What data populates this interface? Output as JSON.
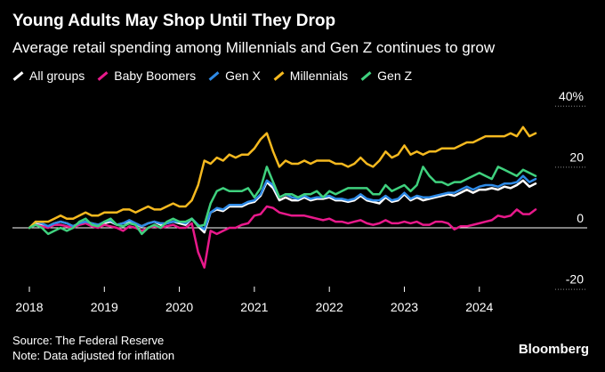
{
  "title": "Young Adults May Shop Until They Drop",
  "subtitle": "Average retail spending among Millennials and Gen Z continues to grow",
  "source": "Source: The Federal Reserve",
  "note": "Note: Data adjusted for inflation",
  "brand": "Bloomberg",
  "chart_data": {
    "type": "line",
    "title": "Young Adults May Shop Until They Drop",
    "subtitle": "Average retail spending among Millennials and Gen Z continues to grow",
    "xlim": [
      2018.0,
      2024.75
    ],
    "ylim": [
      -20,
      42
    ],
    "x_ticks": [
      {
        "value": 2018,
        "label": "2018"
      },
      {
        "value": 2019,
        "label": "2019"
      },
      {
        "value": 2020,
        "label": "2020"
      },
      {
        "value": 2021,
        "label": "2021"
      },
      {
        "value": 2022,
        "label": "2022"
      },
      {
        "value": 2023,
        "label": "2023"
      },
      {
        "value": 2024,
        "label": "2024"
      }
    ],
    "y_ticks": [
      {
        "value": 40,
        "label": "40%"
      },
      {
        "value": 20,
        "label": "20"
      },
      {
        "value": 0,
        "label": "0"
      },
      {
        "value": -20,
        "label": "-20"
      }
    ],
    "grid": false,
    "legend_position": "top-left",
    "x_start": 2018.0,
    "x_step": 0.08333,
    "series": [
      {
        "name": "All groups",
        "color": "#ffffff",
        "values": [
          0,
          1.5,
          1,
          0.5,
          1.5,
          2,
          1.5,
          0.5,
          1.5,
          2,
          1.5,
          1,
          1.5,
          2,
          1,
          1.5,
          2,
          1,
          0.5,
          1.5,
          2,
          1,
          1.5,
          2,
          1.5,
          1,
          3,
          0.5,
          -1.5,
          5,
          6,
          5.5,
          7,
          7,
          7,
          8,
          8.5,
          10.5,
          15,
          13,
          9,
          10,
          9,
          9,
          10,
          9,
          9.5,
          9.5,
          10,
          9,
          9,
          8.5,
          9,
          10.5,
          9,
          8.5,
          8,
          10,
          8.5,
          9,
          11,
          9,
          10,
          9,
          9.5,
          10,
          10.5,
          11,
          10.5,
          11.5,
          12.5,
          11.5,
          12.5,
          12.5,
          13,
          12.5,
          13.5,
          13,
          14,
          15.5,
          13.5,
          14.5
        ]
      },
      {
        "name": "Baby Boomers",
        "color": "#e8198b",
        "values": [
          0,
          1,
          0.5,
          0,
          1,
          1,
          0.5,
          0,
          1,
          1.5,
          0.5,
          0,
          1,
          0.5,
          0,
          -1,
          0.5,
          0,
          -1,
          0,
          0.5,
          0,
          0.5,
          1,
          0,
          0,
          1.5,
          -8,
          -13,
          -1,
          -2,
          -1,
          0,
          0,
          1,
          1.5,
          4,
          4.5,
          7,
          6.5,
          5,
          4.5,
          4,
          4,
          4,
          3.5,
          3,
          2.5,
          3,
          2,
          2,
          1.5,
          2,
          2.5,
          1.5,
          1,
          1.5,
          2.5,
          1.5,
          1.5,
          2,
          1.5,
          2,
          1,
          1,
          2,
          2,
          1.5,
          -0.5,
          0.5,
          0.5,
          1,
          1.5,
          2,
          2.5,
          4,
          3.5,
          4,
          6,
          4.5,
          4.5,
          6
        ]
      },
      {
        "name": "Gen X",
        "color": "#2e8ae6",
        "values": [
          0,
          2,
          1.5,
          0.5,
          1.5,
          2,
          1.5,
          0.5,
          1.5,
          2,
          1.5,
          1,
          2,
          2.5,
          1,
          1.5,
          2.5,
          1.5,
          0.5,
          1.5,
          2,
          1.5,
          1.5,
          2,
          2,
          1.5,
          3,
          1,
          -0.5,
          5,
          6.5,
          6,
          7.5,
          7.5,
          7.5,
          8.5,
          9,
          11,
          15.5,
          14,
          10,
          11,
          10,
          9.5,
          10.5,
          9.5,
          10,
          10,
          10.5,
          9.5,
          9.5,
          9,
          9.5,
          11,
          9.5,
          9,
          9,
          10.5,
          9,
          9.5,
          11.5,
          9.5,
          10.5,
          10,
          10,
          10.5,
          11,
          11.5,
          11.5,
          12.5,
          13.5,
          12.5,
          13.5,
          14,
          14,
          13.5,
          14.5,
          14.5,
          15,
          17,
          15,
          16
        ]
      },
      {
        "name": "Millennials",
        "color": "#f5b91f",
        "values": [
          0,
          2,
          2,
          2,
          3,
          4,
          3,
          3,
          4,
          5,
          4,
          4,
          5,
          5,
          5,
          6,
          6,
          5,
          6,
          7,
          6,
          6,
          7,
          8,
          7,
          7,
          9,
          14,
          22,
          21,
          23,
          22,
          24,
          23,
          24,
          24,
          26,
          29,
          31,
          25,
          20,
          22,
          21,
          21,
          22,
          21,
          22,
          22,
          22,
          21,
          21,
          20,
          21,
          23,
          21,
          20,
          22,
          25,
          23,
          24,
          27,
          24,
          25,
          24,
          25,
          25,
          26,
          26,
          26,
          27,
          28,
          28,
          29,
          30,
          30,
          30,
          30,
          31,
          30,
          33,
          30,
          31
        ]
      },
      {
        "name": "Gen Z",
        "color": "#3fd17e",
        "values": [
          0,
          1,
          0,
          -2,
          -1,
          0,
          -1,
          0,
          2,
          3,
          1,
          0.5,
          2,
          3,
          1,
          0.5,
          1.5,
          1,
          -2,
          0,
          1,
          0,
          2,
          3,
          2,
          2,
          3,
          0.5,
          1,
          8,
          12,
          13,
          12,
          12,
          12,
          13,
          10,
          13,
          20,
          15,
          10,
          11,
          11,
          10,
          11,
          11,
          12,
          10,
          12,
          11,
          12,
          13,
          13,
          13,
          13,
          11,
          11,
          14,
          12,
          13,
          14,
          12,
          14,
          20,
          17,
          15,
          15,
          14,
          15,
          15,
          16,
          17,
          18,
          17,
          16,
          20,
          19,
          18,
          17,
          19,
          18,
          17
        ]
      }
    ]
  }
}
